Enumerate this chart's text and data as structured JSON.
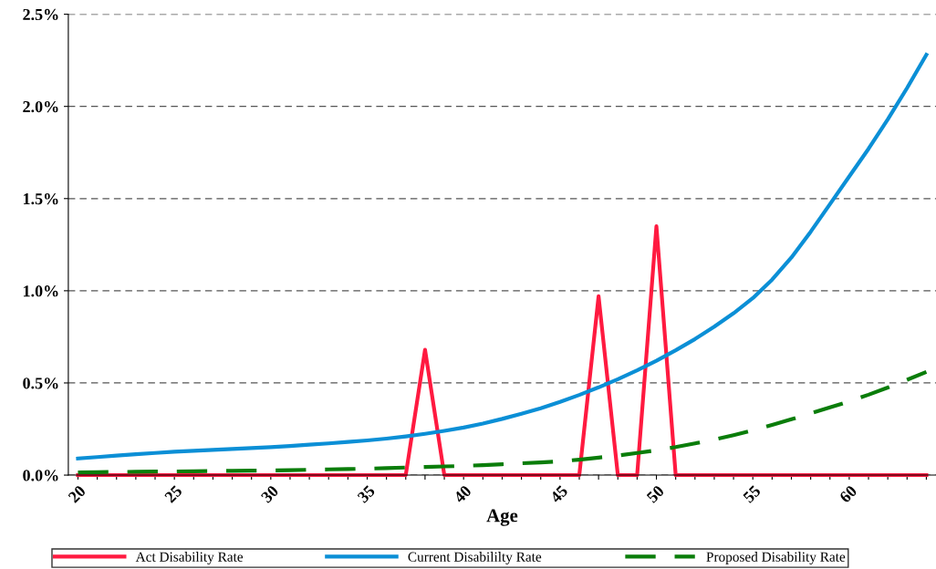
{
  "chart_data": {
    "type": "line",
    "xlabel": "Age",
    "categories": [
      "20",
      null,
      null,
      null,
      null,
      "25",
      null,
      null,
      null,
      null,
      "30",
      null,
      null,
      null,
      null,
      "35",
      null,
      null,
      null,
      null,
      "40",
      null,
      null,
      null,
      null,
      "45",
      null,
      null,
      null,
      null,
      "50",
      null,
      null,
      null,
      null,
      "55",
      null,
      null,
      null,
      null,
      "60",
      null,
      null,
      null,
      null
    ],
    "series": [
      {
        "name": "Act Disability Rate",
        "color": "#ff1a40",
        "line_style": "solid",
        "values": [
          0,
          0,
          0,
          0,
          0,
          0,
          0,
          0,
          0,
          0,
          0,
          0,
          0,
          0,
          0,
          0,
          0,
          0,
          0.68,
          0,
          0,
          0,
          0,
          0,
          0,
          0,
          0,
          0.97,
          0,
          0,
          1.35,
          0,
          0,
          0,
          0,
          0,
          0,
          0,
          0,
          0,
          0,
          0,
          0,
          0,
          0
        ]
      },
      {
        "name": "Current Disabililty Rate",
        "color": "#0b8fd6",
        "line_style": "solid",
        "values": [
          0.09,
          0.098,
          0.106,
          0.113,
          0.12,
          0.127,
          0.132,
          0.137,
          0.142,
          0.147,
          0.152,
          0.158,
          0.165,
          0.172,
          0.18,
          0.188,
          0.198,
          0.21,
          0.224,
          0.24,
          0.258,
          0.28,
          0.305,
          0.333,
          0.363,
          0.397,
          0.435,
          0.476,
          0.52,
          0.568,
          0.62,
          0.677,
          0.738,
          0.805,
          0.878,
          0.96,
          1.06,
          1.18,
          1.32,
          1.47,
          1.62,
          1.77,
          1.93,
          2.1,
          2.28
        ]
      },
      {
        "name": "Proposed Disability Rate",
        "color": "#0a7d0a",
        "line_style": "dashed",
        "values": [
          0.015,
          0.016,
          0.017,
          0.018,
          0.019,
          0.02,
          0.021,
          0.022,
          0.023,
          0.024,
          0.025,
          0.027,
          0.029,
          0.031,
          0.033,
          0.035,
          0.038,
          0.041,
          0.044,
          0.047,
          0.05,
          0.054,
          0.059,
          0.064,
          0.069,
          0.075,
          0.084,
          0.095,
          0.106,
          0.12,
          0.135,
          0.152,
          0.172,
          0.193,
          0.217,
          0.243,
          0.272,
          0.303,
          0.335,
          0.367,
          0.4,
          0.436,
          0.475,
          0.517,
          0.56
        ]
      }
    ],
    "ylim": [
      0,
      2.5
    ],
    "yticks": [
      {
        "value": 0,
        "label": "0.0%"
      },
      {
        "value": 0.5,
        "label": "0.5%"
      },
      {
        "value": 1.0,
        "label": "1.0%"
      },
      {
        "value": 1.5,
        "label": "1.5%"
      },
      {
        "value": 2.0,
        "label": "2.0%"
      },
      {
        "value": 2.5,
        "label": "2.5%"
      }
    ],
    "grid": "y",
    "legend": "bottom",
    "marker": "none"
  }
}
